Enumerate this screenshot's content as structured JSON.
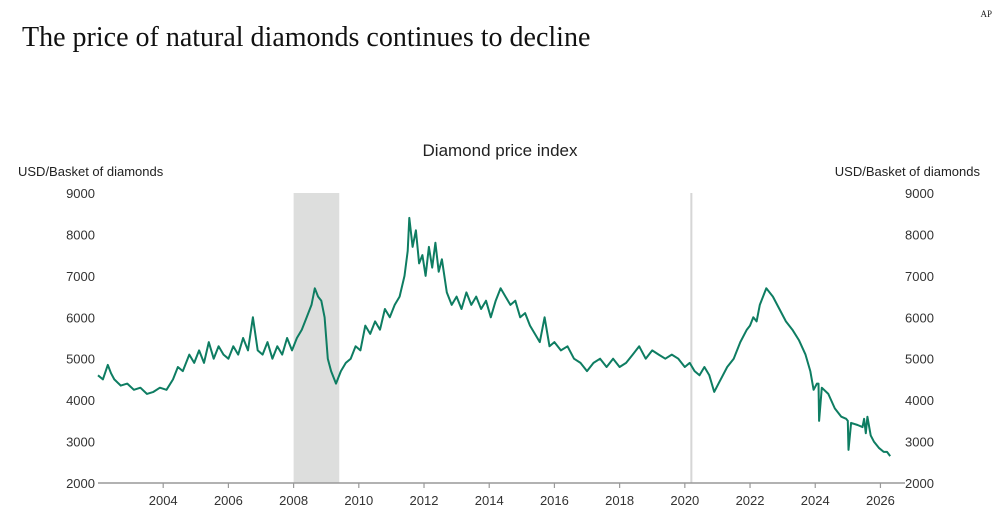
{
  "source_mark": "AP",
  "headline": "The price of natural diamonds continues to decline",
  "chart_data": {
    "type": "line",
    "title": "Diamond price index",
    "ylabel": "USD/Basket of diamonds",
    "ylabel_right": "USD/Basket of diamonds",
    "ylim": [
      2000,
      9000
    ],
    "xlim": [
      2002.0,
      2026.6
    ],
    "yticks": [
      2000,
      3000,
      4000,
      5000,
      6000,
      7000,
      8000,
      9000
    ],
    "xticks": [
      2004,
      2006,
      2008,
      2010,
      2012,
      2014,
      2016,
      2018,
      2020,
      2022,
      2024,
      2026
    ],
    "grid": false,
    "line_color": "#0e7d62",
    "shaded_period": {
      "start": 2008.0,
      "end": 2009.4,
      "color": "#dddedd"
    },
    "vertical_marker": {
      "x": 2020.2,
      "color": "#d6d6d6"
    },
    "series": [
      {
        "x": [
          2002.0,
          2002.15,
          2002.3,
          2002.4,
          2002.5,
          2002.7,
          2002.9,
          2003.1,
          2003.3,
          2003.5,
          2003.7,
          2003.9,
          2004.1,
          2004.3,
          2004.45,
          2004.6,
          2004.8,
          2004.95,
          2005.1,
          2005.25,
          2005.4,
          2005.55,
          2005.7,
          2005.85,
          2006.0,
          2006.15,
          2006.3,
          2006.45,
          2006.6,
          2006.75,
          2006.9,
          2007.05,
          2007.2,
          2007.35,
          2007.5,
          2007.65,
          2007.8,
          2007.95,
          2008.1,
          2008.25,
          2008.4,
          2008.55,
          2008.65,
          2008.75,
          2008.85,
          2008.95,
          2009.05,
          2009.15,
          2009.3,
          2009.45,
          2009.6,
          2009.75,
          2009.9,
          2010.05,
          2010.2,
          2010.35,
          2010.5,
          2010.65,
          2010.8,
          2010.95,
          2011.1,
          2011.25,
          2011.4,
          2011.5,
          2011.55,
          2011.65,
          2011.75,
          2011.85,
          2011.95,
          2012.05,
          2012.15,
          2012.25,
          2012.35,
          2012.45,
          2012.55,
          2012.7,
          2012.85,
          2013.0,
          2013.15,
          2013.3,
          2013.45,
          2013.6,
          2013.75,
          2013.9,
          2014.05,
          2014.2,
          2014.35,
          2014.5,
          2014.65,
          2014.8,
          2014.95,
          2015.1,
          2015.25,
          2015.4,
          2015.55,
          2015.7,
          2015.85,
          2016.0,
          2016.2,
          2016.4,
          2016.6,
          2016.8,
          2017.0,
          2017.2,
          2017.4,
          2017.6,
          2017.8,
          2018.0,
          2018.2,
          2018.4,
          2018.6,
          2018.8,
          2019.0,
          2019.2,
          2019.4,
          2019.6,
          2019.8,
          2020.0,
          2020.15,
          2020.3,
          2020.45,
          2020.6,
          2020.75,
          2020.9,
          2021.1,
          2021.3,
          2021.5,
          2021.7,
          2021.9,
          2022.0,
          2022.1,
          2022.2,
          2022.3,
          2022.5,
          2022.7,
          2022.9,
          2023.1,
          2023.3,
          2023.5,
          2023.7,
          2023.85,
          2023.95,
          2024.05,
          2024.1,
          2024.12,
          2024.2,
          2024.4,
          2024.6,
          2024.8,
          2024.95,
          2025.0,
          2025.02,
          2025.1,
          2025.3,
          2025.45,
          2025.5,
          2025.55,
          2025.6,
          2025.7,
          2025.8,
          2025.95,
          2026.1,
          2026.2,
          2026.3
        ],
        "values": [
          4600,
          4500,
          4850,
          4650,
          4500,
          4350,
          4400,
          4250,
          4300,
          4150,
          4200,
          4300,
          4250,
          4500,
          4800,
          4700,
          5100,
          4900,
          5200,
          4900,
          5400,
          5000,
          5300,
          5100,
          5000,
          5300,
          5100,
          5500,
          5200,
          6000,
          5200,
          5100,
          5400,
          5000,
          5300,
          5100,
          5500,
          5200,
          5500,
          5700,
          6000,
          6300,
          6700,
          6500,
          6400,
          6000,
          5000,
          4700,
          4400,
          4700,
          4900,
          5000,
          5300,
          5200,
          5800,
          5600,
          5900,
          5700,
          6200,
          6000,
          6300,
          6500,
          7000,
          7600,
          8400,
          7700,
          8100,
          7300,
          7500,
          7000,
          7700,
          7200,
          7800,
          7100,
          7400,
          6600,
          6300,
          6500,
          6200,
          6600,
          6300,
          6500,
          6200,
          6400,
          6000,
          6400,
          6700,
          6500,
          6300,
          6400,
          6000,
          6100,
          5800,
          5600,
          5400,
          6000,
          5300,
          5400,
          5200,
          5300,
          5000,
          4900,
          4700,
          4900,
          5000,
          4800,
          5000,
          4800,
          4900,
          5100,
          5300,
          5000,
          5200,
          5100,
          5000,
          5100,
          5000,
          4800,
          4900,
          4700,
          4600,
          4800,
          4600,
          4200,
          4500,
          4800,
          5000,
          5400,
          5700,
          5800,
          6000,
          5900,
          6300,
          6700,
          6500,
          6200,
          5900,
          5700,
          5450,
          5100,
          4700,
          4250,
          4400,
          4400,
          3500,
          4300,
          4150,
          3800,
          3600,
          3550,
          3500,
          2800,
          3450,
          3400,
          3350,
          3550,
          3200,
          3600,
          3150,
          3000,
          2850,
          2750,
          2750,
          2650
        ]
      }
    ]
  }
}
